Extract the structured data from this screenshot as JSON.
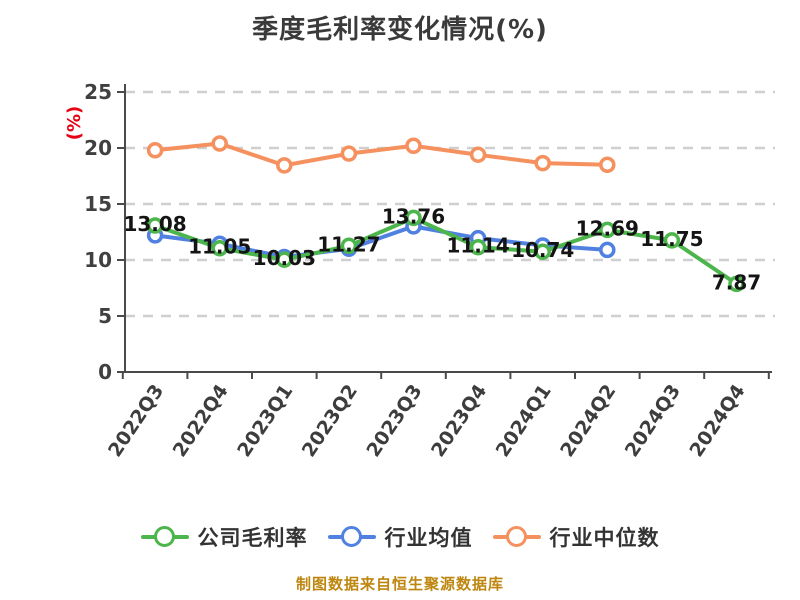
{
  "page": {
    "title": "季度毛利率变化情况(%)",
    "footer": "制图数据来自恒生聚源数据库"
  },
  "colors": {
    "company": "#4CB54C",
    "industry_avg": "#5181E0",
    "industry_median": "#F5915F",
    "grid": "#CFCFCF",
    "axis": "#4A4A4A",
    "tick_label": "#404040",
    "data_label": "#141414",
    "y_unit": "#E60012",
    "footer_text": "#BE860F"
  },
  "chart_data": {
    "type": "line",
    "title": "季度毛利率变化情况(%)",
    "xlabel": "",
    "ylabel": "(%)",
    "ylim": [
      0,
      25
    ],
    "yticks": [
      0,
      5,
      10,
      15,
      20,
      25
    ],
    "grid": "horizontal dashed",
    "legend_position": "bottom",
    "categories": [
      "2022Q3",
      "2022Q4",
      "2023Q1",
      "2023Q2",
      "2023Q3",
      "2023Q4",
      "2024Q1",
      "2024Q2",
      "2024Q3",
      "2024Q4"
    ],
    "series": [
      {
        "name": "公司毛利率",
        "color": "#4CB54C",
        "show_labels": true,
        "values": [
          13.08,
          11.05,
          10.03,
          11.27,
          13.76,
          11.14,
          10.74,
          12.69,
          11.75,
          7.87
        ]
      },
      {
        "name": "行业均值",
        "color": "#5181E0",
        "show_labels": false,
        "values": [
          12.2,
          11.45,
          10.27,
          11.0,
          13.0,
          11.95,
          11.3,
          10.9
        ]
      },
      {
        "name": "行业中位数",
        "color": "#F5915F",
        "show_labels": false,
        "values": [
          19.8,
          20.4,
          18.45,
          19.5,
          20.2,
          19.4,
          18.65,
          18.5
        ]
      }
    ]
  }
}
